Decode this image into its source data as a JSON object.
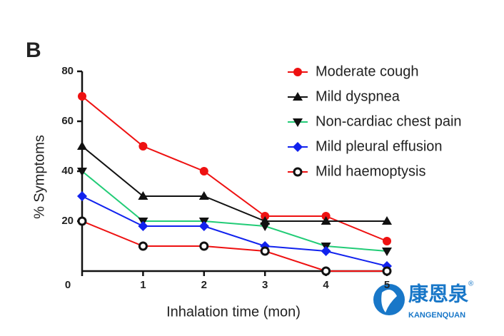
{
  "chart_data": {
    "type": "line",
    "panel_label": "B",
    "x_label": "Inhalation time (mon)",
    "y_label": "% Symptoms",
    "x": [
      0,
      1,
      2,
      3,
      4,
      5
    ],
    "xlim": [
      0,
      5
    ],
    "xticks": [
      0,
      1,
      2,
      3,
      4,
      5
    ],
    "ylim": [
      0,
      80
    ],
    "yticks": [
      20,
      40,
      60,
      80
    ],
    "legend": "top-right",
    "series": [
      {
        "name": "Moderate cough",
        "color": "#ee1111",
        "marker": "circle",
        "marker_color": "#ee1111",
        "values": [
          70,
          50,
          40,
          22,
          22,
          12
        ]
      },
      {
        "name": "Mild dyspnea",
        "color": "#111111",
        "marker": "triangle-up",
        "marker_color": "#111111",
        "values": [
          50,
          30,
          30,
          20,
          20,
          20
        ]
      },
      {
        "name": "Non-cardiac chest pain",
        "color": "#22cc77",
        "marker": "triangle-down",
        "marker_color": "#111111",
        "values": [
          40,
          20,
          20,
          18,
          10,
          8
        ]
      },
      {
        "name": "Mild pleural effusion",
        "color": "#1122ee",
        "marker": "diamond",
        "marker_color": "#1122ee",
        "values": [
          30,
          18,
          18,
          10,
          8,
          2
        ]
      },
      {
        "name": "Mild haemoptysis",
        "color": "#ee1111",
        "marker": "open-circle",
        "marker_color": "#111111",
        "values": [
          20,
          10,
          10,
          8,
          0,
          0
        ]
      }
    ],
    "watermark": {
      "name": "康恩泉",
      "sub": "KANGENQUAN",
      "mark": "®"
    }
  }
}
